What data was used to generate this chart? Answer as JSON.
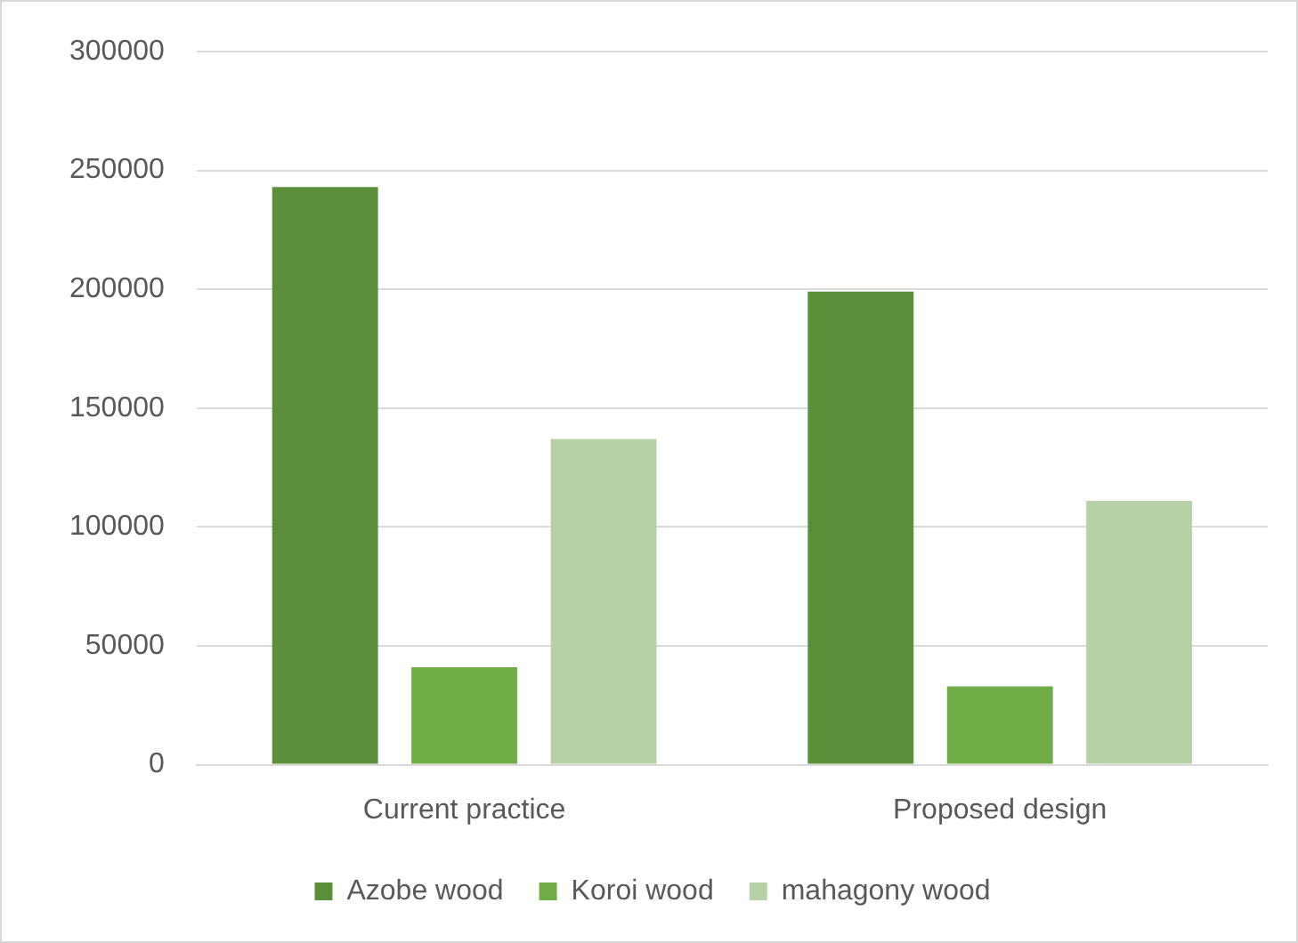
{
  "chart_data": {
    "type": "bar",
    "categories": [
      "Current practice",
      "Proposed design"
    ],
    "series": [
      {
        "name": "Azobe wood",
        "color": "#5b8f3a",
        "values": [
          243000,
          199000
        ]
      },
      {
        "name": "Koroi wood",
        "color": "#70ad47",
        "values": [
          41000,
          33000
        ]
      },
      {
        "name": "mahagony wood",
        "color": "#b5d1a5",
        "values": [
          137000,
          111000
        ]
      }
    ],
    "ylim": [
      0,
      300000
    ],
    "yticks": [
      0,
      50000,
      100000,
      150000,
      200000,
      250000,
      300000
    ],
    "grid": "y",
    "legend": "bottom"
  }
}
